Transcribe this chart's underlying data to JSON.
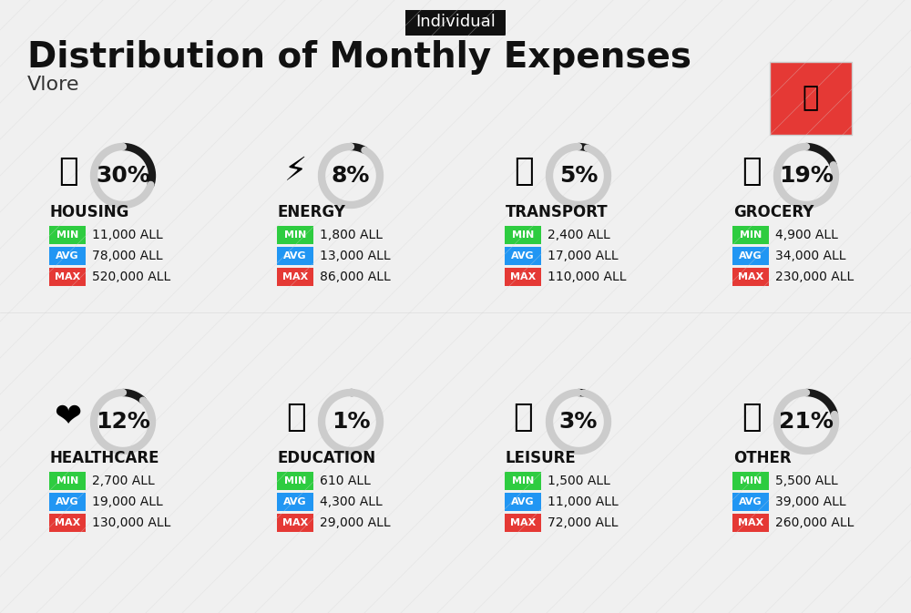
{
  "title": "Distribution of Monthly Expenses",
  "subtitle": "Vlore",
  "badge": "Individual",
  "bg_color": "#f0f0f0",
  "categories": [
    {
      "name": "HOUSING",
      "percent": 30,
      "min_val": "11,000 ALL",
      "avg_val": "78,000 ALL",
      "max_val": "520,000 ALL",
      "col": 0,
      "row": 0
    },
    {
      "name": "ENERGY",
      "percent": 8,
      "min_val": "1,800 ALL",
      "avg_val": "13,000 ALL",
      "max_val": "86,000 ALL",
      "col": 1,
      "row": 0
    },
    {
      "name": "TRANSPORT",
      "percent": 5,
      "min_val": "2,400 ALL",
      "avg_val": "17,000 ALL",
      "max_val": "110,000 ALL",
      "col": 2,
      "row": 0
    },
    {
      "name": "GROCERY",
      "percent": 19,
      "min_val": "4,900 ALL",
      "avg_val": "34,000 ALL",
      "max_val": "230,000 ALL",
      "col": 3,
      "row": 0
    },
    {
      "name": "HEALTHCARE",
      "percent": 12,
      "min_val": "2,700 ALL",
      "avg_val": "19,000 ALL",
      "max_val": "130,000 ALL",
      "col": 0,
      "row": 1
    },
    {
      "name": "EDUCATION",
      "percent": 1,
      "min_val": "610 ALL",
      "avg_val": "4,300 ALL",
      "max_val": "29,000 ALL",
      "col": 1,
      "row": 1
    },
    {
      "name": "LEISURE",
      "percent": 3,
      "min_val": "1,500 ALL",
      "avg_val": "11,000 ALL",
      "max_val": "72,000 ALL",
      "col": 2,
      "row": 1
    },
    {
      "name": "OTHER",
      "percent": 21,
      "min_val": "5,500 ALL",
      "avg_val": "39,000 ALL",
      "max_val": "260,000 ALL",
      "col": 3,
      "row": 1
    }
  ],
  "min_color": "#2ecc40",
  "avg_color": "#2196f3",
  "max_color": "#e53935",
  "arc_color_filled": "#1a1a1a",
  "arc_color_empty": "#cccccc",
  "title_fontsize": 28,
  "subtitle_fontsize": 16,
  "badge_fontsize": 13,
  "category_fontsize": 12,
  "percent_fontsize": 18,
  "value_fontsize": 11
}
